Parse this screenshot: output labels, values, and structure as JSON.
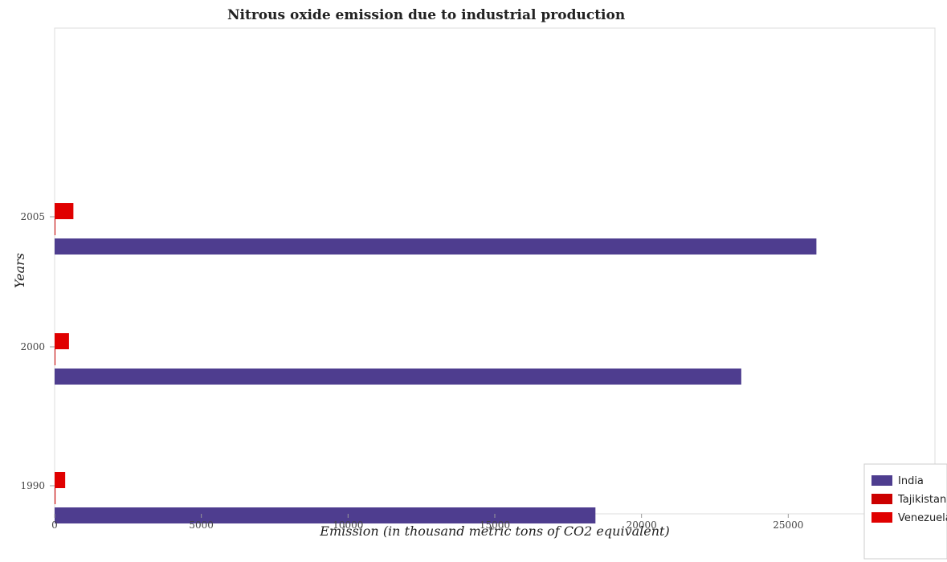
{
  "chart_data": {
    "type": "bar",
    "orientation": "horizontal",
    "title": "Nitrous oxide emission due to industrial production",
    "xlabel": "Emission (in thousand metric tons of CO2 equivalent)",
    "ylabel": "Years",
    "categories": [
      "1990",
      "2000",
      "2005"
    ],
    "series": [
      {
        "name": "India",
        "color": "#4e3d8f",
        "values": [
          18430,
          23400,
          25960
        ]
      },
      {
        "name": "Tajikistan",
        "color": "#cc0000",
        "values": [
          30,
          5,
          15
        ]
      },
      {
        "name": "Venezuela",
        "color": "#e00000",
        "values": [
          360,
          490,
          640
        ]
      }
    ],
    "xlim": [
      0,
      30000
    ],
    "xticks": [
      0,
      5000,
      10000,
      15000,
      20000,
      25000
    ],
    "xtick_labels": [
      "0",
      "5000",
      "10000",
      "15000",
      "20000",
      "25000"
    ],
    "grid": false,
    "legend_position": "bottom-right"
  }
}
